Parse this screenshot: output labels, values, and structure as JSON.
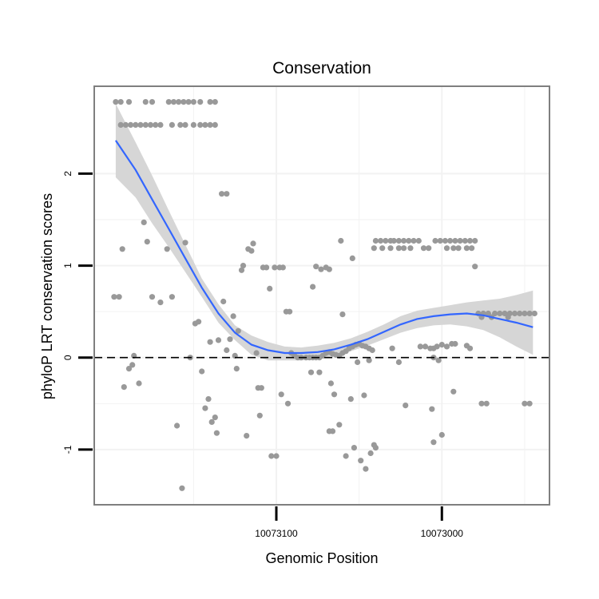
{
  "chart_data": {
    "type": "scatter",
    "title": "Conservation",
    "xlabel": "Genomic Position",
    "ylabel": "phyloP LRT conservation scores",
    "x_reversed": true,
    "xlim": [
      10073210,
      10072935
    ],
    "ylim": [
      -1.6,
      2.95
    ],
    "x_ticks": [
      10073100,
      10073000
    ],
    "x_tick_labels": [
      "10073100",
      "10073000"
    ],
    "y_ticks": [
      -1,
      0,
      1,
      2
    ],
    "y_tick_labels": [
      "-1",
      "0",
      "1",
      "2"
    ],
    "grid": true,
    "reference_line": 0,
    "colors": {
      "points": "#999999",
      "smooth_line": "#3366ff",
      "confidence_band": "#d6d6d6",
      "reference_line": "#000000",
      "panel_border": "#7f7f7f",
      "grid": "#f2f2f2"
    },
    "points": [
      {
        "x": 10073197,
        "y": 2.78
      },
      {
        "x": 10073194,
        "y": 2.78
      },
      {
        "x": 10073189,
        "y": 2.78
      },
      {
        "x": 10073179,
        "y": 2.78
      },
      {
        "x": 10073175,
        "y": 2.78
      },
      {
        "x": 10073165,
        "y": 2.78
      },
      {
        "x": 10073162,
        "y": 2.78
      },
      {
        "x": 10073159,
        "y": 2.78
      },
      {
        "x": 10073156,
        "y": 2.78
      },
      {
        "x": 10073153,
        "y": 2.78
      },
      {
        "x": 10073150,
        "y": 2.78
      },
      {
        "x": 10073146,
        "y": 2.78
      },
      {
        "x": 10073140,
        "y": 2.78
      },
      {
        "x": 10073137,
        "y": 2.78
      },
      {
        "x": 10073194,
        "y": 2.53
      },
      {
        "x": 10073191,
        "y": 2.53
      },
      {
        "x": 10073188,
        "y": 2.53
      },
      {
        "x": 10073185,
        "y": 2.53
      },
      {
        "x": 10073182,
        "y": 2.53
      },
      {
        "x": 10073179,
        "y": 2.53
      },
      {
        "x": 10073176,
        "y": 2.53
      },
      {
        "x": 10073173,
        "y": 2.53
      },
      {
        "x": 10073170,
        "y": 2.53
      },
      {
        "x": 10073163,
        "y": 2.53
      },
      {
        "x": 10073158,
        "y": 2.53
      },
      {
        "x": 10073155,
        "y": 2.53
      },
      {
        "x": 10073150,
        "y": 2.53
      },
      {
        "x": 10073146,
        "y": 2.53
      },
      {
        "x": 10073143,
        "y": 2.53
      },
      {
        "x": 10073140,
        "y": 2.53
      },
      {
        "x": 10073137,
        "y": 2.53
      },
      {
        "x": 10073198,
        "y": 0.66
      },
      {
        "x": 10073195,
        "y": 0.66
      },
      {
        "x": 10073193,
        "y": 1.18
      },
      {
        "x": 10073186,
        "y": 0.02
      },
      {
        "x": 10073189,
        "y": -0.12
      },
      {
        "x": 10073187,
        "y": -0.08
      },
      {
        "x": 10073192,
        "y": -0.32
      },
      {
        "x": 10073183,
        "y": -0.28
      },
      {
        "x": 10073180,
        "y": 1.47
      },
      {
        "x": 10073178,
        "y": 1.26
      },
      {
        "x": 10073175,
        "y": 0.66
      },
      {
        "x": 10073170,
        "y": 0.6
      },
      {
        "x": 10073166,
        "y": 1.18
      },
      {
        "x": 10073163,
        "y": 0.66
      },
      {
        "x": 10073160,
        "y": -0.74
      },
      {
        "x": 10073157,
        "y": -1.42
      },
      {
        "x": 10073155,
        "y": 1.25
      },
      {
        "x": 10073152,
        "y": 0.0
      },
      {
        "x": 10073149,
        "y": 0.37
      },
      {
        "x": 10073147,
        "y": 0.39
      },
      {
        "x": 10073145,
        "y": -0.15
      },
      {
        "x": 10073143,
        "y": -0.55
      },
      {
        "x": 10073141,
        "y": -0.45
      },
      {
        "x": 10073139,
        "y": -0.7
      },
      {
        "x": 10073137,
        "y": -0.65
      },
      {
        "x": 10073136,
        "y": -0.82
      },
      {
        "x": 10073140,
        "y": 0.17
      },
      {
        "x": 10073135,
        "y": 0.19
      },
      {
        "x": 10073133,
        "y": 1.78
      },
      {
        "x": 10073130,
        "y": 1.78
      },
      {
        "x": 10073132,
        "y": 0.61
      },
      {
        "x": 10073130,
        "y": 0.08
      },
      {
        "x": 10073128,
        "y": 0.2
      },
      {
        "x": 10073126,
        "y": 0.45
      },
      {
        "x": 10073125,
        "y": 0.02
      },
      {
        "x": 10073124,
        "y": -0.12
      },
      {
        "x": 10073123,
        "y": 0.29
      },
      {
        "x": 10073121,
        "y": 0.95
      },
      {
        "x": 10073120,
        "y": 1.0
      },
      {
        "x": 10073118,
        "y": -0.85
      },
      {
        "x": 10073117,
        "y": 1.18
      },
      {
        "x": 10073115,
        "y": 1.16
      },
      {
        "x": 10073114,
        "y": 1.24
      },
      {
        "x": 10073112,
        "y": 0.05
      },
      {
        "x": 10073111,
        "y": -0.33
      },
      {
        "x": 10073109,
        "y": -0.33
      },
      {
        "x": 10073110,
        "y": -0.63
      },
      {
        "x": 10073108,
        "y": 0.98
      },
      {
        "x": 10073106,
        "y": 0.98
      },
      {
        "x": 10073104,
        "y": 0.75
      },
      {
        "x": 10073103,
        "y": -1.07
      },
      {
        "x": 10073100,
        "y": -1.07
      },
      {
        "x": 10073101,
        "y": 0.98
      },
      {
        "x": 10073098,
        "y": 0.98
      },
      {
        "x": 10073096,
        "y": 0.98
      },
      {
        "x": 10073097,
        "y": -0.4
      },
      {
        "x": 10073094,
        "y": 0.5
      },
      {
        "x": 10073092,
        "y": 0.5
      },
      {
        "x": 10073093,
        "y": -0.5
      },
      {
        "x": 10073091,
        "y": 0.05
      },
      {
        "x": 10073089,
        "y": 0.02
      },
      {
        "x": 10073087,
        "y": 0.0
      },
      {
        "x": 10073085,
        "y": 0.0
      },
      {
        "x": 10073082,
        "y": 0.0
      },
      {
        "x": 10073080,
        "y": 0.0
      },
      {
        "x": 10073078,
        "y": 0.0
      },
      {
        "x": 10073076,
        "y": 0.0
      },
      {
        "x": 10073074,
        "y": 0.0
      },
      {
        "x": 10073072,
        "y": 0.02
      },
      {
        "x": 10073070,
        "y": 0.05
      },
      {
        "x": 10073068,
        "y": 0.06
      },
      {
        "x": 10073066,
        "y": 0.04
      },
      {
        "x": 10073064,
        "y": 0.03
      },
      {
        "x": 10073062,
        "y": 0.02
      },
      {
        "x": 10073060,
        "y": 0.05
      },
      {
        "x": 10073058,
        "y": 0.07
      },
      {
        "x": 10073056,
        "y": 0.1
      },
      {
        "x": 10073054,
        "y": 0.12
      },
      {
        "x": 10073052,
        "y": 0.14
      },
      {
        "x": 10073050,
        "y": 0.15
      },
      {
        "x": 10073048,
        "y": 0.13
      },
      {
        "x": 10073046,
        "y": 0.12
      },
      {
        "x": 10073044,
        "y": 0.1
      },
      {
        "x": 10073042,
        "y": 0.08
      },
      {
        "x": 10073079,
        "y": -0.16
      },
      {
        "x": 10073074,
        "y": -0.16
      },
      {
        "x": 10073078,
        "y": 0.77
      },
      {
        "x": 10073076,
        "y": 0.99
      },
      {
        "x": 10073073,
        "y": 0.96
      },
      {
        "x": 10073070,
        "y": 0.98
      },
      {
        "x": 10073068,
        "y": 0.96
      },
      {
        "x": 10073068,
        "y": -0.8
      },
      {
        "x": 10073066,
        "y": -0.8
      },
      {
        "x": 10073065,
        "y": -0.4
      },
      {
        "x": 10073067,
        "y": -0.28
      },
      {
        "x": 10073062,
        "y": -0.73
      },
      {
        "x": 10073061,
        "y": 1.27
      },
      {
        "x": 10073060,
        "y": 0.47
      },
      {
        "x": 10073058,
        "y": -1.07
      },
      {
        "x": 10073055,
        "y": -0.45
      },
      {
        "x": 10073054,
        "y": 1.08
      },
      {
        "x": 10073053,
        "y": -0.98
      },
      {
        "x": 10073051,
        "y": -0.05
      },
      {
        "x": 10073049,
        "y": -1.12
      },
      {
        "x": 10073047,
        "y": -0.41
      },
      {
        "x": 10073046,
        "y": -1.21
      },
      {
        "x": 10073044,
        "y": -0.03
      },
      {
        "x": 10073043,
        "y": -1.04
      },
      {
        "x": 10073041,
        "y": -0.95
      },
      {
        "x": 10073040,
        "y": -0.98
      },
      {
        "x": 10073040,
        "y": 1.27
      },
      {
        "x": 10073037,
        "y": 1.27
      },
      {
        "x": 10073034,
        "y": 1.27
      },
      {
        "x": 10073031,
        "y": 1.27
      },
      {
        "x": 10073029,
        "y": 1.27
      },
      {
        "x": 10073026,
        "y": 1.27
      },
      {
        "x": 10073023,
        "y": 1.27
      },
      {
        "x": 10073020,
        "y": 1.27
      },
      {
        "x": 10073017,
        "y": 1.27
      },
      {
        "x": 10073014,
        "y": 1.27
      },
      {
        "x": 10073041,
        "y": 1.19
      },
      {
        "x": 10073036,
        "y": 1.19
      },
      {
        "x": 10073031,
        "y": 1.19
      },
      {
        "x": 10073026,
        "y": 1.19
      },
      {
        "x": 10073023,
        "y": 1.19
      },
      {
        "x": 10073019,
        "y": 1.19
      },
      {
        "x": 10073004,
        "y": 1.27
      },
      {
        "x": 10073001,
        "y": 1.27
      },
      {
        "x": 10072998,
        "y": 1.27
      },
      {
        "x": 10072995,
        "y": 1.27
      },
      {
        "x": 10072992,
        "y": 1.27
      },
      {
        "x": 10072989,
        "y": 1.27
      },
      {
        "x": 10072986,
        "y": 1.27
      },
      {
        "x": 10072983,
        "y": 1.27
      },
      {
        "x": 10072980,
        "y": 1.27
      },
      {
        "x": 10073011,
        "y": 1.19
      },
      {
        "x": 10073008,
        "y": 1.19
      },
      {
        "x": 10072997,
        "y": 1.19
      },
      {
        "x": 10072993,
        "y": 1.19
      },
      {
        "x": 10072990,
        "y": 1.19
      },
      {
        "x": 10072985,
        "y": 1.19
      },
      {
        "x": 10072982,
        "y": 1.19
      },
      {
        "x": 10073030,
        "y": 0.1
      },
      {
        "x": 10073026,
        "y": -0.05
      },
      {
        "x": 10073022,
        "y": -0.52
      },
      {
        "x": 10073013,
        "y": 0.12
      },
      {
        "x": 10073010,
        "y": 0.12
      },
      {
        "x": 10073007,
        "y": 0.1
      },
      {
        "x": 10073005,
        "y": 0.1
      },
      {
        "x": 10073005,
        "y": 0.0
      },
      {
        "x": 10073003,
        "y": 0.12
      },
      {
        "x": 10073002,
        "y": -0.03
      },
      {
        "x": 10073000,
        "y": 0.14
      },
      {
        "x": 10072997,
        "y": 0.12
      },
      {
        "x": 10072994,
        "y": 0.15
      },
      {
        "x": 10072992,
        "y": 0.15
      },
      {
        "x": 10073006,
        "y": -0.56
      },
      {
        "x": 10073005,
        "y": -0.92
      },
      {
        "x": 10073000,
        "y": -0.84
      },
      {
        "x": 10072993,
        "y": -0.37
      },
      {
        "x": 10072985,
        "y": 0.13
      },
      {
        "x": 10072983,
        "y": 0.1
      },
      {
        "x": 10072980,
        "y": 0.99
      },
      {
        "x": 10072978,
        "y": 0.48
      },
      {
        "x": 10072975,
        "y": 0.48
      },
      {
        "x": 10072972,
        "y": 0.48
      },
      {
        "x": 10072968,
        "y": 0.48
      },
      {
        "x": 10072965,
        "y": 0.48
      },
      {
        "x": 10072962,
        "y": 0.48
      },
      {
        "x": 10072959,
        "y": 0.48
      },
      {
        "x": 10072956,
        "y": 0.48
      },
      {
        "x": 10072953,
        "y": 0.48
      },
      {
        "x": 10072950,
        "y": 0.48
      },
      {
        "x": 10072947,
        "y": 0.48
      },
      {
        "x": 10072944,
        "y": 0.48
      },
      {
        "x": 10072976,
        "y": 0.44
      },
      {
        "x": 10072970,
        "y": 0.44
      },
      {
        "x": 10072960,
        "y": 0.44
      },
      {
        "x": 10072976,
        "y": -0.5
      },
      {
        "x": 10072973,
        "y": -0.5
      },
      {
        "x": 10072950,
        "y": -0.5
      },
      {
        "x": 10072947,
        "y": -0.5
      }
    ],
    "smooth": {
      "x": [
        10073197,
        10073185,
        10073175,
        10073165,
        10073155,
        10073145,
        10073135,
        10073125,
        10073115,
        10073105,
        10073095,
        10073085,
        10073075,
        10073065,
        10073055,
        10073045,
        10073035,
        10073025,
        10073015,
        10073005,
        10072995,
        10072985,
        10072975,
        10072965,
        10072955,
        10072945
      ],
      "y": [
        2.36,
        2.04,
        1.72,
        1.4,
        1.08,
        0.76,
        0.48,
        0.27,
        0.14,
        0.08,
        0.05,
        0.05,
        0.06,
        0.09,
        0.14,
        0.2,
        0.28,
        0.36,
        0.42,
        0.45,
        0.47,
        0.48,
        0.46,
        0.42,
        0.38,
        0.33
      ],
      "lo": [
        1.96,
        1.74,
        1.46,
        1.2,
        0.93,
        0.66,
        0.38,
        0.19,
        0.03,
        -0.03,
        -0.03,
        -0.03,
        -0.02,
        0.02,
        0.07,
        0.13,
        0.2,
        0.27,
        0.32,
        0.35,
        0.36,
        0.34,
        0.3,
        0.22,
        0.12,
        0.03
      ],
      "hi": [
        2.76,
        2.34,
        1.98,
        1.6,
        1.23,
        0.86,
        0.58,
        0.35,
        0.24,
        0.17,
        0.12,
        0.11,
        0.13,
        0.16,
        0.21,
        0.28,
        0.36,
        0.45,
        0.51,
        0.54,
        0.57,
        0.6,
        0.62,
        0.64,
        0.68,
        0.73
      ]
    }
  }
}
